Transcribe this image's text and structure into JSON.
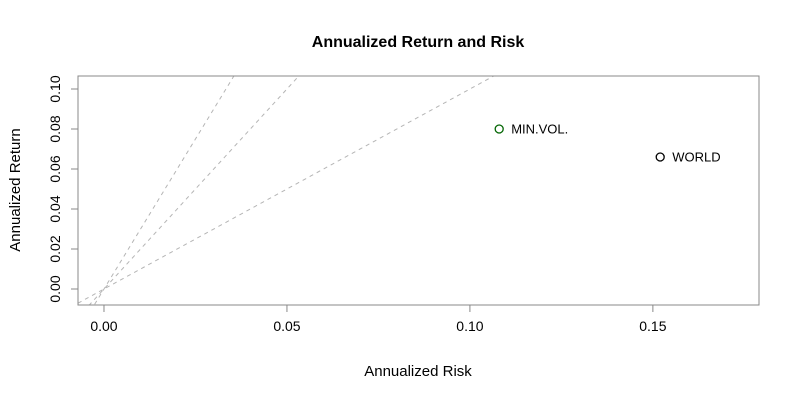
{
  "chart_data": {
    "type": "scatter",
    "title": "Annualized Return and Risk",
    "xlabel": "Annualized Risk",
    "ylabel": "Annualized Return",
    "xlim": [
      -0.0071,
      0.179
    ],
    "ylim": [
      -0.008,
      0.1065
    ],
    "xticks": [
      {
        "value": 0.0,
        "label": "0.00"
      },
      {
        "value": 0.05,
        "label": "0.05"
      },
      {
        "value": 0.1,
        "label": "0.10"
      },
      {
        "value": 0.15,
        "label": "0.15"
      }
    ],
    "yticks": [
      {
        "value": 0.0,
        "label": "0.00"
      },
      {
        "value": 0.02,
        "label": "0.02"
      },
      {
        "value": 0.04,
        "label": "0.04"
      },
      {
        "value": 0.06,
        "label": "0.06"
      },
      {
        "value": 0.08,
        "label": "0.08"
      },
      {
        "value": 0.1,
        "label": "0.10"
      }
    ],
    "points": [
      {
        "label": "MIN.VOL.",
        "x": 0.108,
        "y": 0.08,
        "color": "#006400",
        "marker": "open-circle"
      },
      {
        "label": "WORLD",
        "x": 0.152,
        "y": 0.066,
        "color": "#000000",
        "marker": "open-circle"
      }
    ],
    "reference_lines": [
      {
        "name": "sharpe-ratio-1",
        "slope": 1,
        "intercept": 0
      },
      {
        "name": "sharpe-ratio-2",
        "slope": 2,
        "intercept": 0
      },
      {
        "name": "sharpe-ratio-3",
        "slope": 3,
        "intercept": 0
      }
    ],
    "style": {
      "reference_line_color": "#b5b5b5",
      "reference_line_dash": "4 4",
      "axis_color": "#888888",
      "text_color": "#000000",
      "grid": false,
      "legend": "none"
    }
  }
}
